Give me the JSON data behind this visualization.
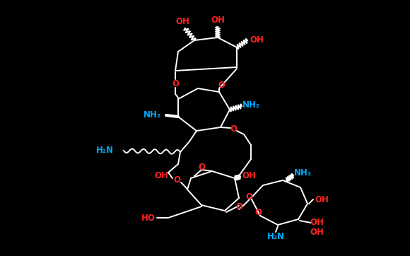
{
  "background_color": "#000000",
  "bond_color": "#ffffff",
  "oxygen_color": "#ff2222",
  "nitrogen_color": "#00aaff",
  "figsize": [
    5.8,
    3.62
  ],
  "dpi": 100,
  "labels": {
    "OH": "OH",
    "HO": "HO",
    "NH2": "NH₂",
    "H2N": "H₂N",
    "O": "O"
  }
}
